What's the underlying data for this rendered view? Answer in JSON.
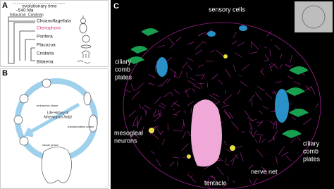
{
  "panel_a": {
    "label": "A",
    "time_label": "evolutionary time",
    "age": "~540 Ma",
    "periods": [
      "Ediacaran",
      "Cambrian"
    ],
    "taxa": [
      "Choanoflagellata",
      "Ctenophora",
      "Porifera",
      "Placozoa",
      "Cnidaria",
      "Bilateria"
    ]
  },
  "panel_b": {
    "label": "B",
    "title_lines": [
      "Life History of",
      "Mnemiopsis leidyi"
    ],
    "phases": [
      "embryonic phase",
      "transformative phase",
      "lobate phase"
    ]
  },
  "panel_c": {
    "label": "C",
    "annotations": [
      {
        "lines": [
          "sensory cells"
        ]
      },
      {
        "lines": [
          "ciliary",
          "comb",
          "plates"
        ]
      },
      {
        "lines": [
          "mesogleal",
          "neurons"
        ]
      },
      {
        "lines": [
          "tentacle"
        ]
      },
      {
        "lines": [
          "nerve net"
        ]
      },
      {
        "lines": [
          "ciliary",
          "comb",
          "plates"
        ]
      }
    ]
  }
}
